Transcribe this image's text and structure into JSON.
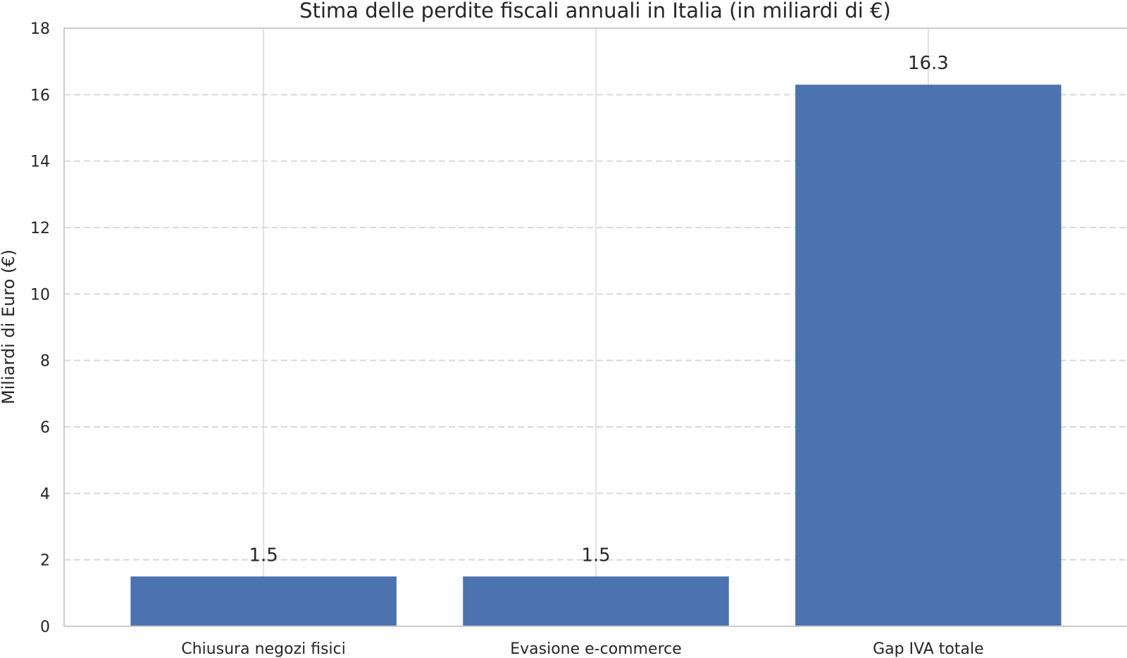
{
  "chart_data": {
    "type": "bar",
    "title": "Stima delle perdite fiscali annuali in Italia (in miliardi di €)",
    "xlabel": "",
    "ylabel": "Miliardi di Euro (€)",
    "categories": [
      "Chiusura negozi fisici",
      "Evasione e-commerce",
      "Gap IVA totale"
    ],
    "values": [
      1.5,
      1.5,
      16.3
    ],
    "data_labels": [
      "1.5",
      "1.5",
      "16.3"
    ],
    "ylim": [
      0,
      18
    ],
    "yticks": [
      0,
      2,
      4,
      6,
      8,
      10,
      12,
      14,
      16,
      18
    ],
    "bar_color": "#4c72b0",
    "grid": "y dashed",
    "legend": "none"
  }
}
